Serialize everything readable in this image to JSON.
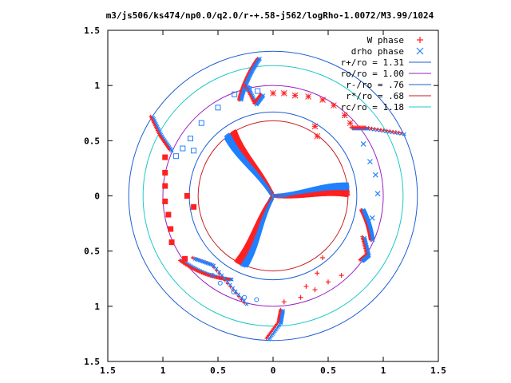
{
  "chart_data": {
    "type": "scatter",
    "title": "m3/js506/ks474/np0.0/q2.0/r-+.58-j562/logRho-1.0072/M3.99/1024",
    "xlabel": "",
    "ylabel": "",
    "xlim": [
      -1.5,
      1.5
    ],
    "ylim": [
      -1.5,
      1.5
    ],
    "xticks": [
      "1.5",
      "1",
      "0.5",
      "0",
      "0.5",
      "1",
      "1.5"
    ],
    "yticks": [
      "1.5",
      "1",
      "0.5",
      "0",
      "0.5",
      "1",
      "1.5"
    ],
    "xtick_values": [
      -1.5,
      -1,
      -0.5,
      0,
      0.5,
      1,
      1.5
    ],
    "ytick_values": [
      1.5,
      1,
      0.5,
      0,
      -0.5,
      -1,
      -1.5
    ],
    "grid": false,
    "legend_position": "top-right",
    "circles": [
      {
        "label": "r+/ro = 1.31",
        "radius": 1.31,
        "color": "#1f5fd6"
      },
      {
        "label": "ro/ro = 1.00",
        "radius": 1.0,
        "color": "#9b1fc4"
      },
      {
        "label": "r-/ro = .76",
        "radius": 0.76,
        "color": "#1f5fd6"
      },
      {
        "label": "r*/ro = .68",
        "radius": 0.68,
        "color": "#c81e1e"
      },
      {
        "label": "rc/ro = 1.18",
        "radius": 1.18,
        "color": "#1ec8c8"
      }
    ],
    "series": [
      {
        "name": "W phase",
        "marker": "plus",
        "color": "#ff2020"
      },
      {
        "name": "drho phase",
        "marker": "cross",
        "color": "#2080ff"
      }
    ],
    "arms": {
      "count": 3,
      "base_angles_deg": [
        238,
        118,
        -2
      ],
      "inner_radius": 0.02,
      "inner_arm_outer_radius": 0.68,
      "rc_radius": 1.18,
      "rl_radius": 1.31
    }
  }
}
